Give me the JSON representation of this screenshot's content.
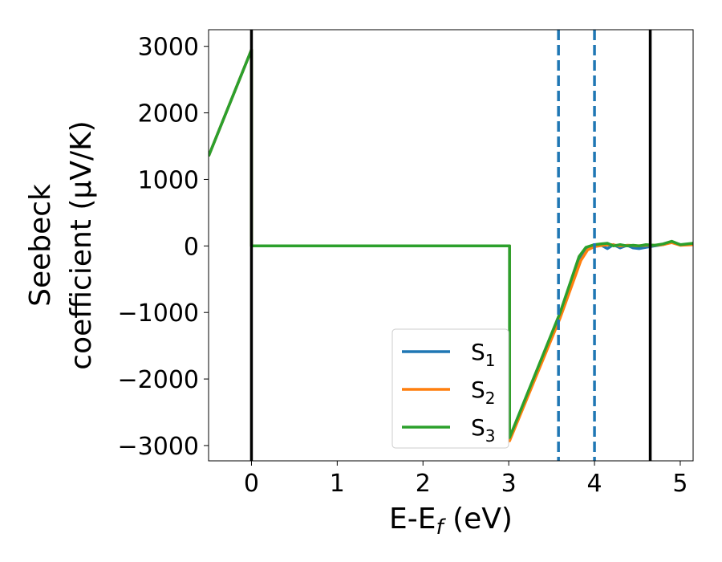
{
  "chart_data": {
    "type": "line",
    "title": "",
    "xlabel": {
      "text": "E-E",
      "sub": "f",
      "suffix": " (eV)"
    },
    "ylabel": {
      "line1": "Seebeck",
      "line2": "coefficient  (μV/K)"
    },
    "xlim": [
      -0.5,
      5.15
    ],
    "ylim": [
      -3230,
      3250
    ],
    "xticks": [
      0,
      1,
      2,
      3,
      4,
      5
    ],
    "xtick_labels": [
      "0",
      "1",
      "2",
      "3",
      "4",
      "5"
    ],
    "yticks": [
      3000,
      2000,
      1000,
      0,
      -1000,
      -2000,
      -3000
    ],
    "ytick_labels": [
      "3000",
      "2000",
      "1000",
      "0",
      "−1000",
      "−2000",
      "−3000"
    ],
    "grid": false,
    "legend_position": "lower center",
    "vertical_lines": [
      {
        "x": 0.0,
        "style": "solid",
        "color": "#000000"
      },
      {
        "x": 4.65,
        "style": "solid",
        "color": "#000000"
      },
      {
        "x": 3.58,
        "style": "dashed",
        "color": "#1f77b4"
      },
      {
        "x": 4.0,
        "style": "dashed",
        "color": "#1f77b4"
      }
    ],
    "series": [
      {
        "name": "S1",
        "label_base": "S",
        "label_sub": "1",
        "color": "#1f77b4",
        "x": [
          -0.5,
          0.0,
          0.0,
          3.01,
          3.01,
          3.6,
          3.82,
          3.9,
          4.0,
          4.08,
          4.15,
          4.22,
          4.3,
          4.38,
          4.45,
          4.52,
          4.6,
          4.7,
          4.8,
          4.9,
          5.0,
          5.15
        ],
        "y": [
          1350,
          2950,
          0,
          0,
          -2920,
          -1050,
          -200,
          -40,
          0,
          10,
          -40,
          20,
          -30,
          10,
          -30,
          -40,
          -20,
          0,
          20,
          60,
          20,
          20
        ]
      },
      {
        "name": "S2",
        "label_base": "S",
        "label_sub": "2",
        "color": "#ff7f0e",
        "x": [
          -0.5,
          0.0,
          0.0,
          3.01,
          3.01,
          3.6,
          3.84,
          3.92,
          4.0,
          4.1,
          4.2,
          4.3,
          4.4,
          4.5,
          4.6,
          4.7,
          4.8,
          4.9,
          5.0,
          5.15
        ],
        "y": [
          1350,
          2950,
          0,
          0,
          -2930,
          -1080,
          -220,
          -60,
          -10,
          10,
          20,
          0,
          10,
          0,
          10,
          10,
          20,
          50,
          10,
          20
        ]
      },
      {
        "name": "S3",
        "label_base": "S",
        "label_sub": "3",
        "color": "#2ca02c",
        "x": [
          -0.5,
          0.0,
          0.0,
          3.01,
          3.01,
          3.6,
          3.82,
          3.9,
          4.0,
          4.08,
          4.15,
          4.22,
          4.3,
          4.38,
          4.45,
          4.52,
          4.6,
          4.7,
          4.8,
          4.9,
          5.0,
          5.15
        ],
        "y": [
          1350,
          2950,
          0,
          0,
          -2880,
          -1000,
          -160,
          -20,
          20,
          30,
          40,
          0,
          20,
          0,
          10,
          0,
          20,
          10,
          30,
          70,
          20,
          40
        ]
      }
    ]
  }
}
